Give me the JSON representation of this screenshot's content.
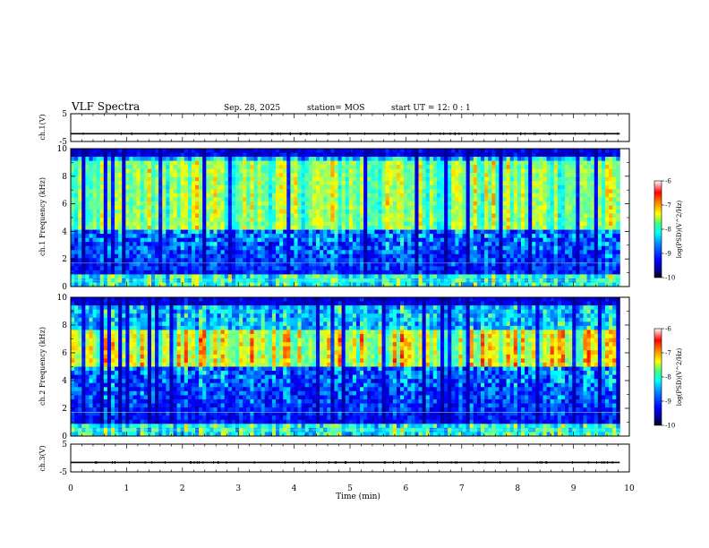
{
  "header": {
    "title": "VLF Spectra",
    "date": "Sep. 28, 2025",
    "station": "station= MOS",
    "start_ut": "start  UT  =   12: 0   : 1"
  },
  "chart_data": [
    {
      "type": "line",
      "panel": "ch1_waveform",
      "ylabel": "ch.1(V)",
      "x": [
        0,
        9.83
      ],
      "values": [
        -2.2,
        -2.2
      ],
      "ylim": [
        -5,
        5
      ],
      "yticks": [
        5,
        -5
      ],
      "xlim": [
        0,
        10
      ]
    },
    {
      "type": "heatmap",
      "panel": "ch1_spectrogram",
      "ylabel": "ch.1 Frequency (kHz)",
      "ylim": [
        0,
        10
      ],
      "yticks": [
        0,
        2,
        4,
        6,
        8,
        10
      ],
      "xlim": [
        0,
        10
      ],
      "data_end_min": 9.83,
      "intensity_band_khz": [
        4,
        9
      ],
      "peak_log_psd": -7,
      "colorbar": {
        "label": "log(PSD)(V^2/Hz)",
        "ticks": [
          -6,
          -7,
          -8,
          -9,
          -10
        ],
        "range": [
          -10,
          -6
        ]
      }
    },
    {
      "type": "heatmap",
      "panel": "ch2_spectrogram",
      "ylabel": "ch.2 Frequency (kHz)",
      "ylim": [
        0,
        10
      ],
      "yticks": [
        0,
        2,
        4,
        6,
        8,
        10
      ],
      "xlim": [
        0,
        10
      ],
      "data_end_min": 9.83,
      "intensity_band_khz": [
        5,
        7.5
      ],
      "peak_log_psd": -6.5,
      "colorbar": {
        "label": "log(PSD)(V^2/Hz)",
        "ticks": [
          -6,
          -7,
          -8,
          -9,
          -10
        ],
        "range": [
          -10,
          -6
        ]
      }
    },
    {
      "type": "line",
      "panel": "ch3_waveform",
      "ylabel": "ch.3(V)",
      "x": [
        0,
        9.83
      ],
      "values": [
        -1.6,
        -1.6
      ],
      "ylim": [
        -5,
        5
      ],
      "yticks": [
        5,
        -5
      ],
      "xlim": [
        0,
        10
      ]
    }
  ],
  "xaxis": {
    "label": "Time  (min)",
    "ticks": [
      "0",
      "1",
      "2",
      "3",
      "4",
      "5",
      "6",
      "7",
      "8",
      "9",
      "10"
    ]
  },
  "colors": {
    "jet": [
      "#00007f",
      "#0000ff",
      "#007fff",
      "#00ffff",
      "#7fff7f",
      "#ffff00",
      "#ff7f00",
      "#ff0000",
      "#7f0000"
    ],
    "frame": "#000000"
  }
}
